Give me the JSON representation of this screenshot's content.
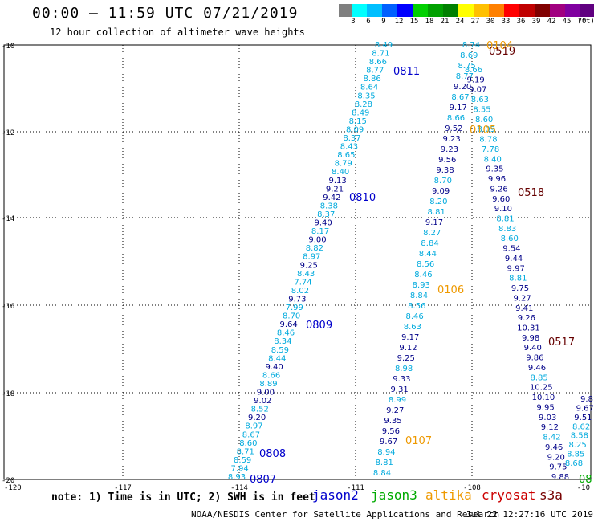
{
  "title": "00:00 – 11:59 UTC 07/21/2019",
  "subtitle": "12 hour collection of altimeter wave heights",
  "legend": {
    "unit": "(ft)",
    "colors": [
      "#7f7f7f",
      "#00ffff",
      "#00bfff",
      "#0060ff",
      "#0000ff",
      "#00d000",
      "#00a000",
      "#008000",
      "#ffff00",
      "#ffc000",
      "#ff8000",
      "#ff0000",
      "#c00000",
      "#800000",
      "#a00080",
      "#8000a0",
      "#600080",
      "#000000"
    ],
    "labels": [
      "3",
      "6",
      "9",
      "12",
      "15",
      "18",
      "21",
      "24",
      "27",
      "30",
      "33",
      "36",
      "39",
      "42",
      "45",
      "70"
    ]
  },
  "map": {
    "lat_labels": [
      "-10",
      "-12",
      "-14",
      "-16",
      "-18",
      "-20"
    ],
    "lon_labels": [
      "-120",
      "-117",
      "-114",
      "-111",
      "-108",
      "-10"
    ],
    "tracks": [
      {
        "color": "#00aadd",
        "values": [
          "8.49",
          "8.71",
          "8.66",
          "8.77",
          "8.86",
          "8.64",
          "8.35",
          "8.28",
          "8.49",
          "8.15",
          "8.09",
          "8.37",
          "8.43",
          "8.65",
          "8.79",
          "8.40",
          "9.13",
          "9.21",
          "9.42",
          "8.38",
          "8.37",
          "9.40",
          "8.17",
          "9.00",
          "8.82",
          "8.97",
          "9.25",
          "8.43",
          "7.74",
          "8.02",
          "9.73",
          "7.99",
          "8.70",
          "9.64",
          "8.46",
          "8.34",
          "8.59",
          "8.44",
          "9.40",
          "8.66",
          "8.89",
          "9.00",
          "9.02",
          "8.52",
          "9.20",
          "8.97",
          "8.67",
          "8.60",
          "8.71",
          "8.59",
          "7.94",
          "8.93"
        ]
      },
      {
        "color": "#00aadd",
        "values": [
          "8.74",
          "8.69",
          "8.75",
          "8.77",
          "9.20",
          "8.67",
          "9.17",
          "8.66",
          "9.52",
          "9.23",
          "9.23",
          "9.56",
          "9.38",
          "8.70",
          "9.09",
          "8.20",
          "8.81",
          "9.17",
          "8.27",
          "8.84",
          "8.44",
          "8.56",
          "8.46",
          "8.93",
          "8.84",
          "8.56",
          "8.46",
          "8.63",
          "9.17",
          "9.12",
          "9.25",
          "8.98",
          "9.33",
          "9.31",
          "8.99",
          "9.27",
          "9.35",
          "9.56",
          "9.67",
          "8.94",
          "8.81",
          "8.84"
        ]
      },
      {
        "color": "#00aadd",
        "values": [
          "8.66",
          "9.19",
          "9.07",
          "8.63",
          "8.55",
          "8.60",
          "8.09",
          "8.78",
          "7.78",
          "8.40",
          "9.35",
          "9.96",
          "9.26",
          "9.60",
          "9.10",
          "8.81",
          "8.83",
          "8.60",
          "9.54",
          "9.44",
          "9.97",
          "8.81",
          "9.75",
          "9.27",
          "9.41",
          "9.26",
          "10.31",
          "9.98",
          "9.40",
          "9.86",
          "9.46",
          "8.85",
          "10.25",
          "10.10",
          "9.95",
          "9.03",
          "9.12",
          "8.42",
          "9.46",
          "9.20",
          "9.75",
          "9.88"
        ]
      },
      {
        "color": "#00aadd",
        "values": [
          "9.8",
          "9.67",
          "9.51",
          "8.62",
          "8.58",
          "8.25",
          "8.85",
          "8.68"
        ]
      }
    ],
    "time_labels": [
      {
        "text": "0811",
        "color": "#0000cc"
      },
      {
        "text": "0810",
        "color": "#0000cc"
      },
      {
        "text": "0809",
        "color": "#0000cc"
      },
      {
        "text": "0808",
        "color": "#0000cc"
      },
      {
        "text": "0807",
        "color": "#0000cc"
      },
      {
        "text": "0104",
        "color": "#ee9900"
      },
      {
        "text": "0105",
        "color": "#ee9900"
      },
      {
        "text": "0106",
        "color": "#ee9900"
      },
      {
        "text": "0107",
        "color": "#ee9900"
      },
      {
        "text": "0519",
        "color": "#660000"
      },
      {
        "text": "0518",
        "color": "#660000"
      },
      {
        "text": "0517",
        "color": "#660000"
      },
      {
        "text": "08",
        "color": "#00aa00"
      }
    ]
  },
  "footer": {
    "note": "note: 1) Time is in UTC; 2) SWH is in feet",
    "satellites": [
      {
        "name": "jason2",
        "color": "#0000cc"
      },
      {
        "name": "jason3",
        "color": "#00aa00"
      },
      {
        "name": "altika",
        "color": "#ee9900"
      },
      {
        "name": "cryosat",
        "color": "#cc0000"
      },
      {
        "name": "s3a",
        "color": "#770000"
      }
    ],
    "credit": "NOAA/NESDIS Center for Satellite Applications and Research",
    "generated": "Jul 22 12:27:16 UTC 2019"
  }
}
